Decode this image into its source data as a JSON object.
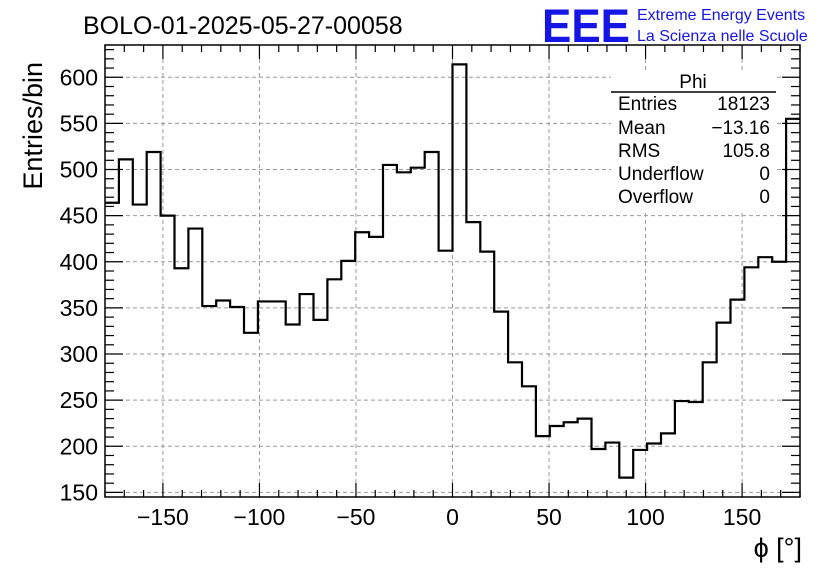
{
  "brand": {
    "logo_text": "EEE",
    "line1": "Extreme Energy Events",
    "line2": "La Scienza nelle Scuole",
    "color": "#1515e6"
  },
  "chart_data": {
    "type": "histogram",
    "title": "BOLO-01-2025-05-27-00058",
    "xlabel": "ϕ [°]",
    "ylabel": "Entries/bin",
    "xlim": [
      -180,
      180
    ],
    "ylim": [
      145,
      635
    ],
    "x_ticks": [
      -150,
      -100,
      -50,
      0,
      50,
      100,
      150
    ],
    "y_ticks": [
      150,
      200,
      250,
      300,
      350,
      400,
      450,
      500,
      550,
      600
    ],
    "grid": true,
    "bin_width": 7.2,
    "bin_edges_start": -180,
    "values": [
      464,
      511,
      462,
      519,
      450,
      393,
      436,
      352,
      358,
      351,
      323,
      357,
      357,
      332,
      365,
      337,
      381,
      401,
      432,
      427,
      505,
      497,
      502,
      519,
      412,
      614,
      443,
      411,
      346,
      291,
      265,
      211,
      222,
      226,
      230,
      197,
      204,
      166,
      196,
      203,
      214,
      249,
      248,
      291,
      334,
      359,
      394,
      405,
      400,
      555
    ],
    "stats_box": {
      "title": "Phi",
      "placement": "top-right",
      "rows": [
        {
          "label": "Entries",
          "value": "18123"
        },
        {
          "label": "Mean",
          "value": "−13.16"
        },
        {
          "label": "RMS",
          "value": "105.8"
        },
        {
          "label": "Underflow",
          "value": "0"
        },
        {
          "label": "Overflow",
          "value": "0"
        }
      ]
    }
  }
}
